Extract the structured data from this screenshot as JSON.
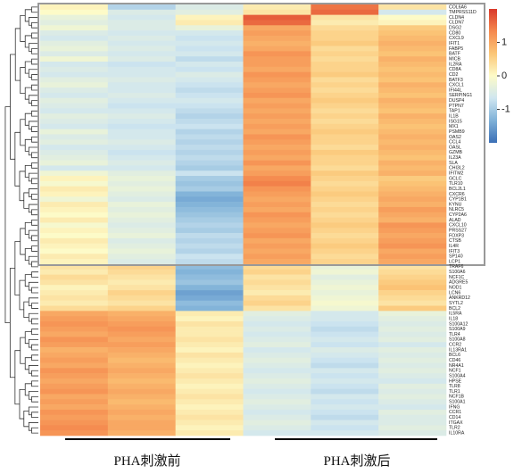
{
  "chart_data": {
    "type": "heatmap",
    "rows": [
      "COL6A6",
      "TMPRSS11D",
      "CLDN4",
      "CLDN7",
      "DSG2",
      "CD80",
      "CXCL9",
      "IFIT1",
      "FABP5",
      "BATF",
      "MICB",
      "IL2RA",
      "CD8A",
      "CD2",
      "BATF3",
      "CXCL1",
      "IFI44L",
      "SERPING1",
      "DUSP4",
      "PTPN7",
      "TAP1",
      "IL1B",
      "ISG15",
      "MX1",
      "PSMB9",
      "OAS2",
      "CCL4",
      "OASL",
      "GZMB",
      "IL23A",
      "SLA",
      "CHI3L2",
      "IFITM2",
      "GCLC",
      "TLR10",
      "BCL2L1",
      "CXCR6",
      "CYP1B1",
      "KYNU",
      "NLRC5",
      "CYP2A6",
      "ALAD",
      "CXCL10",
      "PRSS27",
      "FOXP3",
      "CTSB",
      "IL4R",
      "IFIT3",
      "SP140",
      "LCP1",
      "TRAF6",
      "S100A6",
      "NCF1C",
      "ADGRE5",
      "NOD1",
      "LCN6",
      "ANKRD12",
      "SYTL2",
      "BCL2",
      "IL5RA",
      "IL18",
      "S100A12",
      "S100A9",
      "TLR4",
      "S100A8",
      "CCR2",
      "IL13RA1",
      "BCL6",
      "CD46",
      "NR4A1",
      "NCF1",
      "S100A4",
      "HPSE",
      "TLR8",
      "TLR1",
      "NCF1B",
      "S100A1",
      "IFNG",
      "CCR1",
      "CD14",
      "ITGAX",
      "TLR2",
      "IL10RA"
    ],
    "values": [
      [
        0.1,
        -0.9,
        -0.5,
        0.2,
        1.5,
        0.3
      ],
      [
        0.0,
        -0.5,
        -0.4,
        0.3,
        1.6,
        -0.6
      ],
      [
        -0.3,
        -0.6,
        0.1,
        1.7,
        0.3,
        0.0
      ],
      [
        -0.4,
        -0.5,
        0.2,
        1.6,
        0.2,
        0.1
      ],
      [
        -0.2,
        -0.5,
        -0.3,
        1.0,
        0.4,
        0.6
      ],
      [
        -0.5,
        -0.6,
        -0.6,
        1.1,
        0.5,
        0.7
      ],
      [
        -0.6,
        -0.5,
        -0.7,
        1.0,
        0.5,
        0.8
      ],
      [
        -0.4,
        -0.6,
        -0.6,
        0.9,
        0.6,
        0.9
      ],
      [
        -0.3,
        -0.5,
        -0.7,
        1.0,
        0.4,
        0.8
      ],
      [
        -0.5,
        -0.6,
        -0.6,
        1.2,
        0.5,
        0.7
      ],
      [
        -0.2,
        -0.5,
        -0.8,
        1.1,
        0.4,
        0.9
      ],
      [
        -0.6,
        -0.7,
        -0.6,
        1.1,
        0.5,
        0.8
      ],
      [
        -0.5,
        -0.6,
        -0.7,
        1.0,
        0.5,
        0.7
      ],
      [
        -0.6,
        -0.6,
        -0.5,
        1.2,
        0.6,
        0.8
      ],
      [
        -0.4,
        -0.5,
        -0.6,
        1.1,
        0.4,
        0.7
      ],
      [
        -0.3,
        -0.6,
        -0.7,
        1.0,
        0.5,
        0.9
      ],
      [
        -0.5,
        -0.6,
        -0.8,
        1.1,
        0.4,
        0.8
      ],
      [
        -0.6,
        -0.5,
        -0.7,
        1.2,
        0.5,
        0.7
      ],
      [
        -0.4,
        -0.6,
        -0.6,
        1.0,
        0.6,
        0.9
      ],
      [
        -0.5,
        -0.7,
        -0.7,
        1.1,
        0.5,
        0.8
      ],
      [
        -0.6,
        -0.6,
        -0.8,
        1.0,
        0.4,
        0.7
      ],
      [
        -0.4,
        -0.5,
        -0.9,
        1.1,
        0.5,
        0.9
      ],
      [
        -0.5,
        -0.6,
        -0.8,
        1.0,
        0.4,
        0.8
      ],
      [
        -0.6,
        -0.7,
        -0.7,
        1.1,
        0.5,
        0.7
      ],
      [
        -0.3,
        -0.6,
        -0.9,
        1.0,
        0.6,
        0.8
      ],
      [
        -0.5,
        -0.6,
        -0.8,
        1.2,
        0.5,
        0.9
      ],
      [
        -0.4,
        -0.5,
        -0.9,
        1.1,
        0.5,
        0.8
      ],
      [
        -0.6,
        -0.6,
        -0.8,
        1.0,
        0.4,
        0.9
      ],
      [
        -0.5,
        -0.7,
        -0.9,
        1.1,
        0.6,
        0.8
      ],
      [
        -0.4,
        -0.6,
        -0.8,
        1.0,
        0.5,
        0.7
      ],
      [
        -0.3,
        -0.5,
        -0.9,
        1.2,
        0.5,
        0.9
      ],
      [
        -0.6,
        -0.6,
        -1.0,
        1.0,
        0.4,
        0.8
      ],
      [
        -0.2,
        -0.4,
        -0.7,
        1.1,
        0.6,
        0.9
      ],
      [
        0.1,
        -0.3,
        -1.0,
        1.3,
        0.5,
        0.6
      ],
      [
        -0.1,
        -0.4,
        -1.1,
        1.4,
        0.4,
        0.7
      ],
      [
        0.2,
        -0.3,
        -1.0,
        1.2,
        0.5,
        0.8
      ],
      [
        0.1,
        -0.4,
        -1.3,
        1.1,
        0.6,
        0.9
      ],
      [
        -0.2,
        -0.5,
        -1.4,
        1.0,
        0.5,
        1.0
      ],
      [
        0.2,
        -0.3,
        -1.3,
        1.1,
        0.4,
        0.9
      ],
      [
        0.1,
        -0.4,
        -1.2,
        1.0,
        0.5,
        1.1
      ],
      [
        0.0,
        -0.3,
        -1.1,
        1.2,
        0.4,
        1.0
      ],
      [
        0.2,
        -0.4,
        -1.0,
        1.1,
        0.5,
        0.9
      ],
      [
        -0.1,
        -0.5,
        -0.9,
        1.0,
        0.6,
        1.2
      ],
      [
        0.1,
        -0.4,
        -1.0,
        1.1,
        0.5,
        1.1
      ],
      [
        0.0,
        -0.3,
        -0.8,
        1.2,
        0.4,
        1.0
      ],
      [
        0.2,
        -0.5,
        -0.9,
        1.0,
        0.5,
        1.1
      ],
      [
        0.1,
        -0.4,
        -0.8,
        1.1,
        0.6,
        1.2
      ],
      [
        0.0,
        -0.3,
        -0.9,
        1.0,
        0.5,
        1.0
      ],
      [
        0.2,
        -0.4,
        -0.7,
        1.1,
        0.4,
        1.1
      ],
      [
        0.1,
        -0.5,
        -0.8,
        1.0,
        0.5,
        1.0
      ],
      [
        0.3,
        0.5,
        -1.2,
        0.4,
        -0.3,
        0.3
      ],
      [
        0.2,
        0.4,
        -1.3,
        0.5,
        -0.2,
        0.4
      ],
      [
        0.4,
        0.3,
        -1.2,
        0.3,
        -0.4,
        0.5
      ],
      [
        0.3,
        0.2,
        -1.1,
        0.4,
        -0.3,
        0.6
      ],
      [
        0.1,
        0.3,
        -1.3,
        0.3,
        -0.2,
        0.7
      ],
      [
        0.2,
        0.5,
        -1.5,
        0.2,
        -0.3,
        0.5
      ],
      [
        0.3,
        0.4,
        -1.4,
        0.4,
        -0.2,
        0.4
      ],
      [
        0.2,
        0.3,
        -1.2,
        0.5,
        -0.1,
        0.3
      ],
      [
        0.4,
        0.5,
        -1.3,
        0.3,
        -0.2,
        0.6
      ],
      [
        1.0,
        0.9,
        0.2,
        -0.4,
        -0.6,
        -0.3
      ],
      [
        1.1,
        1.0,
        0.1,
        -0.5,
        -0.6,
        -0.4
      ],
      [
        1.2,
        1.1,
        0.3,
        -0.6,
        -0.7,
        -0.5
      ],
      [
        1.1,
        1.2,
        0.2,
        -0.5,
        -0.8,
        -0.4
      ],
      [
        1.0,
        1.1,
        0.2,
        -0.6,
        -0.7,
        -0.5
      ],
      [
        1.2,
        1.0,
        0.3,
        -0.5,
        -0.6,
        -0.4
      ],
      [
        1.1,
        1.1,
        0.2,
        -0.4,
        -0.7,
        -0.6
      ],
      [
        0.9,
        1.0,
        0.1,
        -0.6,
        -0.5,
        -0.4
      ],
      [
        1.0,
        0.9,
        0.3,
        -0.5,
        -0.6,
        -0.5
      ],
      [
        1.1,
        0.8,
        0.2,
        -0.4,
        -0.7,
        -0.4
      ],
      [
        1.0,
        0.9,
        0.1,
        -0.5,
        -0.8,
        -0.5
      ],
      [
        1.2,
        1.0,
        0.2,
        -0.6,
        -0.6,
        -0.4
      ],
      [
        1.1,
        0.9,
        0.3,
        -0.5,
        -0.7,
        -0.5
      ],
      [
        1.0,
        0.8,
        0.2,
        -0.4,
        -0.6,
        -0.6
      ],
      [
        1.1,
        0.9,
        0.1,
        -0.5,
        -0.7,
        -0.4
      ],
      [
        1.2,
        1.0,
        0.2,
        -0.6,
        -0.8,
        -0.5
      ],
      [
        1.0,
        0.9,
        0.3,
        -0.5,
        -0.6,
        -0.4
      ],
      [
        1.1,
        0.8,
        0.2,
        -0.4,
        -0.7,
        -0.5
      ],
      [
        1.0,
        0.9,
        0.1,
        -0.5,
        -0.6,
        -0.6
      ],
      [
        1.2,
        1.0,
        0.2,
        -0.6,
        -0.7,
        -0.4
      ],
      [
        1.1,
        0.9,
        0.3,
        -0.5,
        -0.8,
        -0.5
      ],
      [
        1.2,
        1.0,
        0.2,
        -0.4,
        -0.6,
        -0.5
      ],
      [
        1.3,
        1.0,
        0.1,
        -0.5,
        -0.7,
        -0.4
      ],
      [
        1.2,
        0.9,
        0.2,
        -0.6,
        -0.6,
        -0.5
      ]
    ],
    "column_groups": [
      "PHA刺激前",
      "PHA刺激后"
    ],
    "colors": [
      "#3b6fb6",
      "#7fb1d8",
      "#cfe6f0",
      "#fdfbc8",
      "#fbc677",
      "#f5894e",
      "#d9382a"
    ],
    "zlim": [
      -2,
      2
    ],
    "zticks": [
      1,
      0,
      -1
    ]
  }
}
